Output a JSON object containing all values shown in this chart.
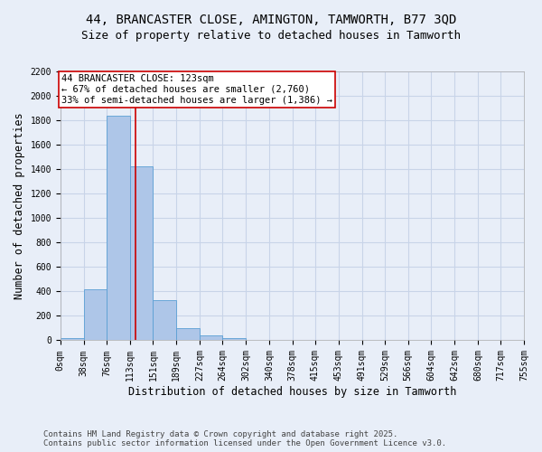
{
  "title_line1": "44, BRANCASTER CLOSE, AMINGTON, TAMWORTH, B77 3QD",
  "title_line2": "Size of property relative to detached houses in Tamworth",
  "xlabel": "Distribution of detached houses by size in Tamworth",
  "ylabel": "Number of detached properties",
  "footer_line1": "Contains HM Land Registry data © Crown copyright and database right 2025.",
  "footer_line2": "Contains public sector information licensed under the Open Government Licence v3.0.",
  "bin_edges": [
    0,
    38,
    76,
    113,
    151,
    189,
    227,
    264,
    302,
    340,
    378,
    415,
    453,
    491,
    529,
    566,
    604,
    642,
    680,
    717,
    755
  ],
  "bin_counts": [
    18,
    420,
    1840,
    1420,
    330,
    100,
    40,
    20,
    0,
    0,
    0,
    0,
    0,
    0,
    0,
    0,
    0,
    0,
    0,
    0
  ],
  "bar_color": "#aec6e8",
  "bar_edge_color": "#5a9fd4",
  "background_color": "#e8eef8",
  "grid_color": "#c8d4e8",
  "vline_x": 123,
  "vline_color": "#cc0000",
  "annotation_text": "44 BRANCASTER CLOSE: 123sqm\n← 67% of detached houses are smaller (2,760)\n33% of semi-detached houses are larger (1,386) →",
  "annotation_box_color": "#ffffff",
  "annotation_box_edge": "#cc0000",
  "ylim": [
    0,
    2200
  ],
  "yticks": [
    0,
    200,
    400,
    600,
    800,
    1000,
    1200,
    1400,
    1600,
    1800,
    2000,
    2200
  ],
  "title_fontsize": 10,
  "subtitle_fontsize": 9,
  "tick_label_fontsize": 7,
  "axis_label_fontsize": 8.5,
  "annotation_fontsize": 7.5,
  "footer_fontsize": 6.5
}
